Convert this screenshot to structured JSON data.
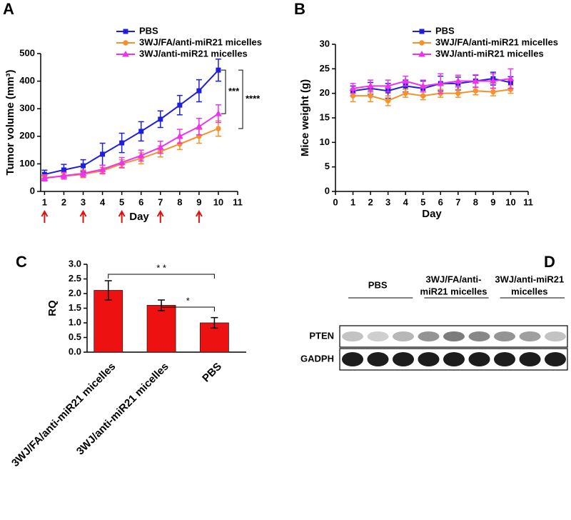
{
  "chart_data": [
    {
      "type": "line",
      "panel": "A",
      "x_label": "Day",
      "y_label": "Tumor volume (mm³)",
      "x": [
        1,
        2,
        3,
        4,
        5,
        6,
        7,
        8,
        9,
        10
      ],
      "xlim": [
        0.8,
        11
      ],
      "xticks": [
        1,
        2,
        3,
        4,
        5,
        6,
        7,
        8,
        9,
        10,
        11
      ],
      "ylim": [
        0,
        500
      ],
      "yticks": [
        0,
        100,
        200,
        300,
        400,
        500
      ],
      "series": [
        {
          "name": "PBS",
          "color": "#1f1fdd",
          "marker": "square",
          "values": [
            62,
            78,
            93,
            135,
            176,
            218,
            262,
            313,
            365,
            440
          ],
          "error": [
            15,
            20,
            22,
            40,
            35,
            35,
            30,
            35,
            40,
            40
          ]
        },
        {
          "name": "3WJ/FA/anti-miR21 micelles",
          "color": "#f7912a",
          "marker": "circle",
          "values": [
            50,
            55,
            62,
            75,
            100,
            120,
            145,
            172,
            200,
            228
          ],
          "error": [
            10,
            10,
            12,
            12,
            15,
            20,
            20,
            20,
            25,
            28
          ]
        },
        {
          "name": "3WJ/anti-miR21 micelles",
          "color": "#ee33ee",
          "marker": "triangle",
          "values": [
            48,
            57,
            65,
            80,
            105,
            130,
            160,
            200,
            235,
            282
          ],
          "error": [
            10,
            12,
            12,
            15,
            18,
            20,
            22,
            25,
            30,
            32
          ]
        }
      ],
      "treatment_days": [
        1,
        3,
        5,
        7,
        9
      ],
      "annotations": [
        "***",
        "****"
      ]
    },
    {
      "type": "line",
      "panel": "B",
      "x_label": "Day",
      "y_label": "Mice weight (g)",
      "x": [
        1,
        2,
        3,
        4,
        5,
        6,
        7,
        8,
        9,
        10
      ],
      "xlim": [
        0,
        11
      ],
      "xticks": [
        0,
        1,
        2,
        3,
        4,
        5,
        6,
        7,
        8,
        9,
        10,
        11
      ],
      "ylim": [
        0,
        30
      ],
      "yticks": [
        0,
        5,
        10,
        15,
        20,
        25,
        30
      ],
      "series": [
        {
          "name": "PBS",
          "color": "#1f1fdd",
          "marker": "square",
          "values": [
            20.5,
            21,
            20.5,
            21.5,
            21,
            22,
            22,
            22.5,
            23,
            22.2
          ],
          "error": [
            1,
            1.2,
            1.5,
            1.2,
            1.5,
            1.5,
            1.3,
            1.2,
            1.3,
            1.2
          ]
        },
        {
          "name": "3WJ/FA/anti-miR21 micelles",
          "color": "#f7912a",
          "marker": "circle",
          "values": [
            19.5,
            19.5,
            18.5,
            20,
            19.5,
            20,
            20,
            20.5,
            20.3,
            20.8
          ],
          "error": [
            1.2,
            1.2,
            1,
            0.8,
            0.8,
            0.8,
            0.8,
            0.8,
            0.8,
            0.8
          ]
        },
        {
          "name": "3WJ/anti-miR21 micelles",
          "color": "#ee33ee",
          "marker": "triangle",
          "values": [
            21,
            21.5,
            21.5,
            22.5,
            21.5,
            22,
            22.5,
            22.5,
            22.5,
            23
          ],
          "error": [
            1,
            1.2,
            1.2,
            1,
            1.2,
            2,
            1.2,
            1.3,
            1.5,
            2
          ]
        }
      ]
    },
    {
      "type": "bar",
      "panel": "C",
      "y_label": "RQ",
      "categories": [
        "3WJ/FA/anti-miR21 micelles",
        "3WJ/anti-miR21 micelles",
        "PBS"
      ],
      "values": [
        2.11,
        1.6,
        1.0
      ],
      "error": [
        0.33,
        0.18,
        0.18
      ],
      "color": "#ee1111",
      "ylim": [
        0,
        3
      ],
      "yticks": [
        {
          "value": 0,
          "label": "0.0"
        },
        {
          "value": 0.5,
          "label": "0.5"
        },
        {
          "value": 1,
          "label": "1.0"
        },
        {
          "value": 1.5,
          "label": "1.5"
        },
        {
          "value": 2,
          "label": "2.0"
        },
        {
          "value": 2.5,
          "label": "2.5"
        },
        {
          "value": 3,
          "label": "3.0"
        }
      ],
      "annotations": [
        "* *",
        "*"
      ]
    }
  ],
  "blot": {
    "panel": "D",
    "groups": [
      {
        "lines": [
          "PBS"
        ]
      },
      {
        "lines": [
          "3WJ/FA/anti-",
          "miR21 micelles"
        ]
      },
      {
        "lines": [
          "3WJ/anti-miR21",
          "micelles"
        ]
      }
    ],
    "rows": [
      "PTEN",
      "GADPH"
    ]
  }
}
